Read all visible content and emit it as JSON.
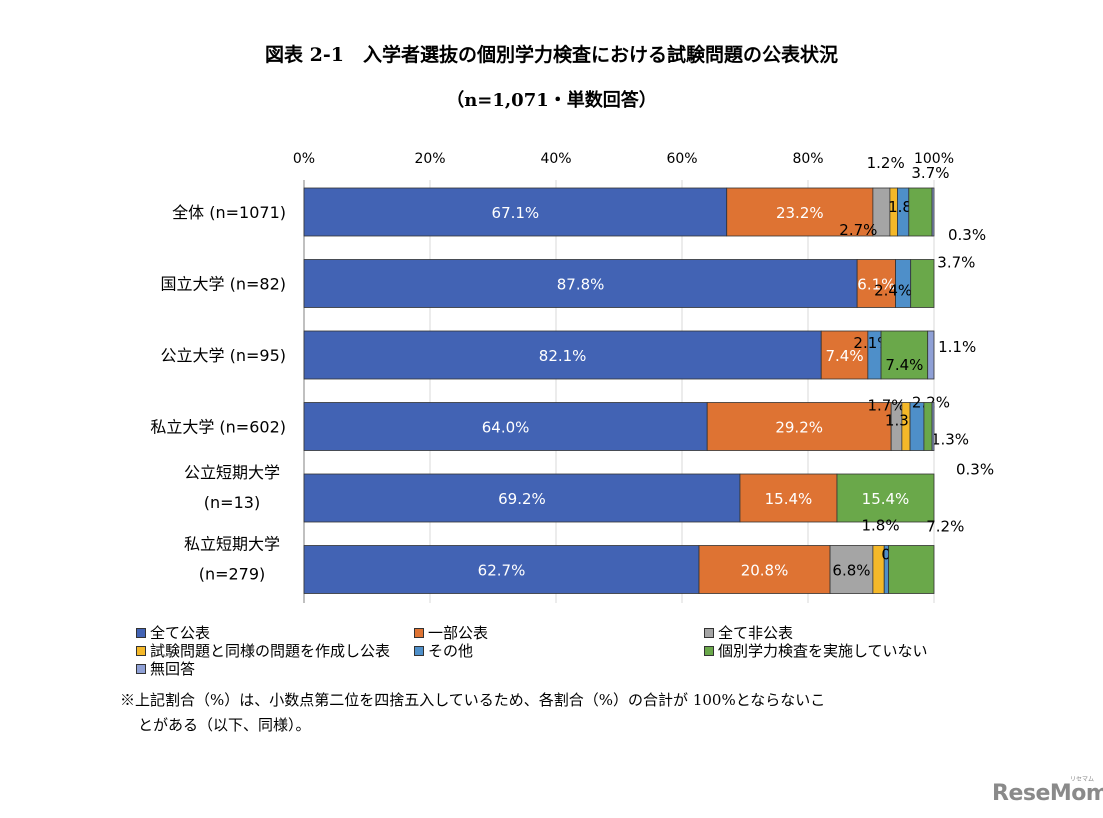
{
  "title": "図表 2-1　入学者選抜の個別学力検査における試験問題の公表状況",
  "subtitle": "（n=1,071・単数回答）",
  "colors": {
    "全て公表": "#4263b4",
    "一部公表": "#de7333",
    "全て非公表": "#a5a5a5",
    "試験問題と同様の問題を作成し公表": "#f4b829",
    "その他": "#4e8fc9",
    "個別学力検査を実施していない": "#6aa84a",
    "無回答": "#8fa0d6"
  },
  "chart_data": {
    "type": "bar",
    "orientation": "horizontal",
    "stacked": true,
    "xlim": [
      0,
      100
    ],
    "x_ticks": [
      "0%",
      "20%",
      "40%",
      "60%",
      "80%",
      "100%"
    ],
    "categories": [
      [
        "全体 (n=1071)"
      ],
      [
        "国立大学 (n=82)"
      ],
      [
        "公立大学 (n=95)"
      ],
      [
        "私立大学 (n=602)"
      ],
      [
        "公立短期大学",
        "(n=13)"
      ],
      [
        "私立短期大学",
        "(n=279)"
      ]
    ],
    "series": [
      {
        "name": "全て公表",
        "values": [
          67.1,
          87.8,
          82.1,
          64.0,
          69.2,
          62.7
        ]
      },
      {
        "name": "一部公表",
        "values": [
          23.2,
          6.1,
          7.4,
          29.2,
          15.4,
          20.8
        ]
      },
      {
        "name": "全て非公表",
        "values": [
          2.7,
          0.0,
          0.0,
          1.7,
          0.0,
          6.8
        ]
      },
      {
        "name": "試験問題と同様の問題を作成し公表",
        "values": [
          1.2,
          0.0,
          0.0,
          1.3,
          0.0,
          1.8
        ]
      },
      {
        "name": "その他",
        "values": [
          1.8,
          2.4,
          2.1,
          2.2,
          0.0,
          0.7
        ]
      },
      {
        "name": "個別学力検査を実施していない",
        "values": [
          3.7,
          3.7,
          7.4,
          1.3,
          15.4,
          7.2
        ]
      },
      {
        "name": "無回答",
        "values": [
          0.3,
          0.0,
          1.1,
          0.3,
          0.0,
          0.0
        ]
      }
    ],
    "data_labels": [
      [
        "67.1%",
        "23.2%",
        "2.7%",
        "1.2%",
        "1.8%",
        "3.7%",
        "0.3%"
      ],
      [
        "87.8%",
        "6.1%",
        "",
        "",
        "2.4%",
        "3.7%",
        ""
      ],
      [
        "82.1%",
        "7.4%",
        "",
        "",
        "2.1%",
        "7.4%",
        "1.1%"
      ],
      [
        "64.0%",
        "29.2%",
        "1.7%",
        "1.3%",
        "2.2%",
        "1.3%",
        "0.3%"
      ],
      [
        "69.2%",
        "15.4%",
        "",
        "",
        "",
        "15.4%",
        ""
      ],
      [
        "62.7%",
        "20.8%",
        "6.8%",
        "1.8%",
        "0.7%",
        "7.2%",
        ""
      ]
    ],
    "legend_position": "bottom",
    "grid": true
  },
  "legend": [
    "全て公表",
    "一部公表",
    "全て非公表",
    "試験問題と同様の問題を作成し公表",
    "その他",
    "個別学力検査を実施していない",
    "無回答"
  ],
  "footnote": [
    "※上記割合（%）は、小数点第二位を四捨五入しているため、各割合（%）の合計が 100%とならないこ",
    "とがある（以下、同様）。"
  ],
  "watermark": {
    "text": "ReseMom",
    "kana": "リセマム"
  }
}
